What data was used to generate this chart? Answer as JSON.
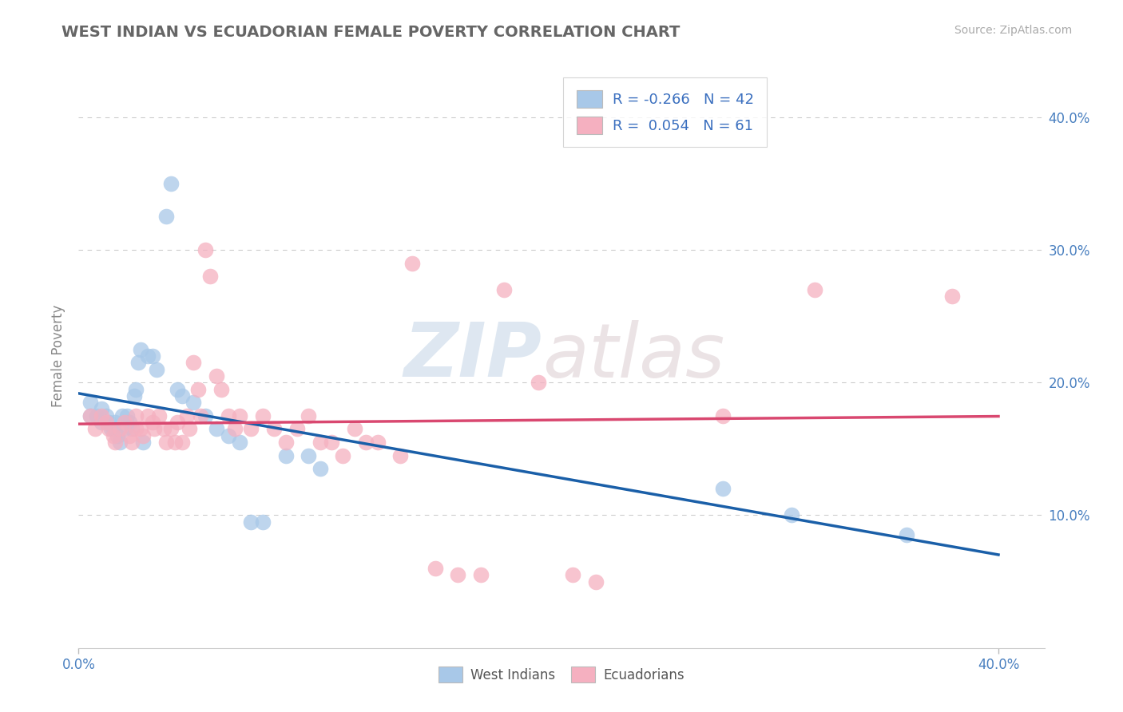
{
  "title": "WEST INDIAN VS ECUADORIAN FEMALE POVERTY CORRELATION CHART",
  "source": "Source: ZipAtlas.com",
  "ylabel": "Female Poverty",
  "xlim": [
    0.0,
    0.42
  ],
  "ylim": [
    0.0,
    0.44
  ],
  "xtick_positions": [
    0.0,
    0.4
  ],
  "xtick_labels": [
    "0.0%",
    "40.0%"
  ],
  "ytick_positions": [
    0.1,
    0.2,
    0.3,
    0.4
  ],
  "ytick_labels": [
    "10.0%",
    "20.0%",
    "30.0%",
    "40.0%"
  ],
  "grid_color": "#cccccc",
  "background_color": "#ffffff",
  "west_indian_color": "#a8c8e8",
  "ecuadorian_color": "#f5b0c0",
  "west_indian_line_color": "#1a5fa8",
  "ecuadorian_line_color": "#d94870",
  "west_indian_R": -0.266,
  "west_indian_N": 42,
  "ecuadorian_R": 0.054,
  "ecuadorian_N": 61,
  "legend_text_color": "#3a6fbf",
  "watermark_text": "ZIP",
  "watermark_text2": "atlas",
  "west_indian_x": [
    0.005,
    0.005,
    0.008,
    0.01,
    0.01,
    0.012,
    0.013,
    0.014,
    0.015,
    0.016,
    0.017,
    0.018,
    0.019,
    0.02,
    0.021,
    0.022,
    0.023,
    0.024,
    0.025,
    0.026,
    0.027,
    0.028,
    0.03,
    0.032,
    0.034,
    0.038,
    0.04,
    0.043,
    0.045,
    0.05,
    0.055,
    0.06,
    0.065,
    0.07,
    0.075,
    0.08,
    0.09,
    0.1,
    0.105,
    0.28,
    0.31,
    0.36
  ],
  "west_indian_y": [
    0.185,
    0.175,
    0.175,
    0.18,
    0.17,
    0.175,
    0.17,
    0.165,
    0.165,
    0.17,
    0.16,
    0.155,
    0.175,
    0.165,
    0.175,
    0.17,
    0.165,
    0.19,
    0.195,
    0.215,
    0.225,
    0.155,
    0.22,
    0.22,
    0.21,
    0.325,
    0.35,
    0.195,
    0.19,
    0.185,
    0.175,
    0.165,
    0.16,
    0.155,
    0.095,
    0.095,
    0.145,
    0.145,
    0.135,
    0.12,
    0.1,
    0.085
  ],
  "ecuadorian_x": [
    0.005,
    0.007,
    0.01,
    0.012,
    0.013,
    0.015,
    0.016,
    0.018,
    0.02,
    0.022,
    0.023,
    0.025,
    0.025,
    0.027,
    0.028,
    0.03,
    0.032,
    0.033,
    0.035,
    0.037,
    0.038,
    0.04,
    0.042,
    0.043,
    0.045,
    0.047,
    0.048,
    0.05,
    0.052,
    0.053,
    0.055,
    0.057,
    0.06,
    0.062,
    0.065,
    0.068,
    0.07,
    0.075,
    0.08,
    0.085,
    0.09,
    0.095,
    0.1,
    0.105,
    0.11,
    0.115,
    0.12,
    0.125,
    0.13,
    0.14,
    0.145,
    0.155,
    0.165,
    0.175,
    0.185,
    0.2,
    0.215,
    0.225,
    0.28,
    0.32,
    0.38
  ],
  "ecuadorian_y": [
    0.175,
    0.165,
    0.175,
    0.17,
    0.165,
    0.16,
    0.155,
    0.165,
    0.17,
    0.16,
    0.155,
    0.175,
    0.165,
    0.165,
    0.16,
    0.175,
    0.17,
    0.165,
    0.175,
    0.165,
    0.155,
    0.165,
    0.155,
    0.17,
    0.155,
    0.175,
    0.165,
    0.215,
    0.195,
    0.175,
    0.3,
    0.28,
    0.205,
    0.195,
    0.175,
    0.165,
    0.175,
    0.165,
    0.175,
    0.165,
    0.155,
    0.165,
    0.175,
    0.155,
    0.155,
    0.145,
    0.165,
    0.155,
    0.155,
    0.145,
    0.29,
    0.06,
    0.055,
    0.055,
    0.27,
    0.2,
    0.055,
    0.05,
    0.175,
    0.27,
    0.265
  ]
}
